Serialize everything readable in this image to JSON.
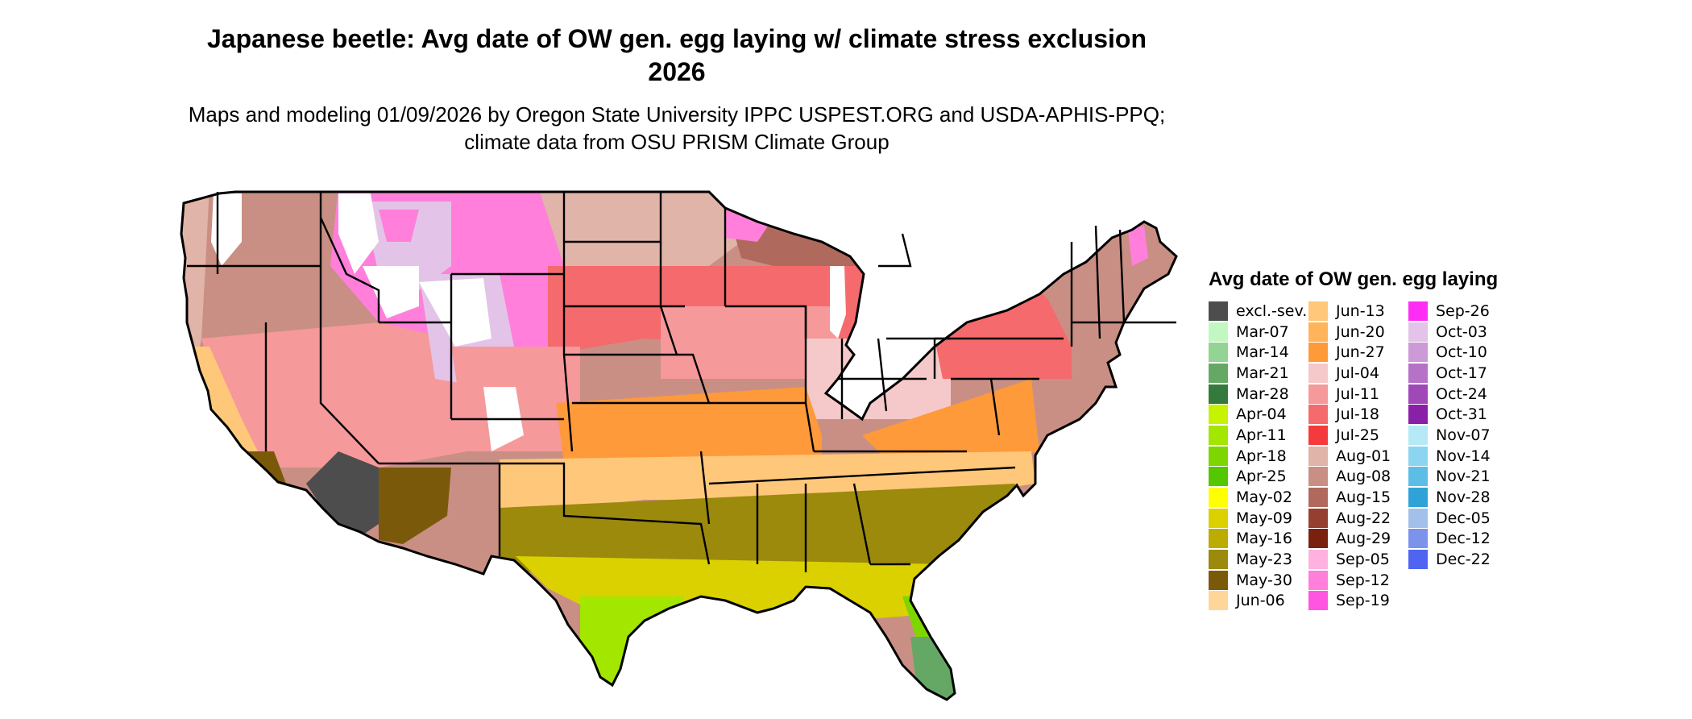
{
  "title": "Japanese beetle: Avg date of OW gen. egg laying w/ climate stress exclusion 2026",
  "subtitle": "Maps and modeling 01/09/2026 by Oregon State University IPPC USPEST.ORG and USDA-APHIS-PPQ; climate data from OSU PRISM Climate Group",
  "legend": {
    "title": "Avg date of OW gen. egg laying",
    "columns": [
      [
        {
          "label": "excl.-sev.",
          "color": "#4d4d4d"
        },
        {
          "label": "Mar-07",
          "color": "#c2f7c2"
        },
        {
          "label": "Mar-14",
          "color": "#93d393"
        },
        {
          "label": "Mar-21",
          "color": "#65a865"
        },
        {
          "label": "Mar-28",
          "color": "#357a3d"
        },
        {
          "label": "Apr-04",
          "color": "#c6f400"
        },
        {
          "label": "Apr-11",
          "color": "#a3e600"
        },
        {
          "label": "Apr-18",
          "color": "#7ed600"
        },
        {
          "label": "Apr-25",
          "color": "#53c700"
        },
        {
          "label": "May-02",
          "color": "#ffff00"
        },
        {
          "label": "May-09",
          "color": "#dbd100"
        },
        {
          "label": "May-16",
          "color": "#bcac00"
        },
        {
          "label": "May-23",
          "color": "#9b8a0c"
        },
        {
          "label": "May-30",
          "color": "#7a5a0a"
        },
        {
          "label": "Jun-06",
          "color": "#ffd699"
        }
      ],
      [
        {
          "label": "Jun-13",
          "color": "#ffc77a"
        },
        {
          "label": "Jun-20",
          "color": "#ffb45c"
        },
        {
          "label": "Jun-27",
          "color": "#ff9a3a"
        },
        {
          "label": "Jul-04",
          "color": "#f5c9c9"
        },
        {
          "label": "Jul-11",
          "color": "#f5999b"
        },
        {
          "label": "Jul-18",
          "color": "#f56a6c"
        },
        {
          "label": "Jul-25",
          "color": "#f53a3d"
        },
        {
          "label": "Aug-01",
          "color": "#e0b4a8"
        },
        {
          "label": "Aug-08",
          "color": "#c98f84"
        },
        {
          "label": "Aug-15",
          "color": "#b06a5d"
        },
        {
          "label": "Aug-22",
          "color": "#953f30"
        },
        {
          "label": "Aug-29",
          "color": "#7a200f"
        },
        {
          "label": "Sep-05",
          "color": "#ffb2e0"
        },
        {
          "label": "Sep-12",
          "color": "#ff7fdb"
        },
        {
          "label": "Sep-19",
          "color": "#ff55e0"
        }
      ],
      [
        {
          "label": "Sep-26",
          "color": "#ff2cf5"
        },
        {
          "label": "Oct-03",
          "color": "#e3c4e8"
        },
        {
          "label": "Oct-10",
          "color": "#cc9ad6"
        },
        {
          "label": "Oct-17",
          "color": "#b672c6"
        },
        {
          "label": "Oct-24",
          "color": "#a048b8"
        },
        {
          "label": "Oct-31",
          "color": "#8a20a8"
        },
        {
          "label": "Nov-07",
          "color": "#b5e9f5"
        },
        {
          "label": "Nov-14",
          "color": "#8cd5f0"
        },
        {
          "label": "Nov-21",
          "color": "#5cbde6"
        },
        {
          "label": "Nov-28",
          "color": "#2fa3d8"
        },
        {
          "label": "Dec-05",
          "color": "#a3c0ea"
        },
        {
          "label": "Dec-12",
          "color": "#7b93ea"
        },
        {
          "label": "Dec-22",
          "color": "#4f64f0"
        }
      ]
    ]
  },
  "map_regions": [
    {
      "name": "severe-exclusion-desert",
      "date": "excl.-sev."
    },
    {
      "name": "high-mountain-west",
      "date": "Sep-12"
    },
    {
      "name": "rocky-mountain-core",
      "date": "Oct-03"
    },
    {
      "name": "pacific-northwest-interior",
      "date": "Aug-08"
    },
    {
      "name": "pacific-coast",
      "date": "Aug-01"
    },
    {
      "name": "great-basin",
      "date": "Jul-11"
    },
    {
      "name": "northern-plains",
      "date": "Aug-01"
    },
    {
      "name": "upper-midwest-north",
      "date": "Aug-08"
    },
    {
      "name": "northern-great-lakes",
      "date": "Aug-15"
    },
    {
      "name": "central-plains",
      "date": "Jul-18"
    },
    {
      "name": "iowa-illinois-band",
      "date": "Jul-11"
    },
    {
      "name": "ohio-valley",
      "date": "Jul-04"
    },
    {
      "name": "new-york-pennsylvania",
      "date": "Jul-18"
    },
    {
      "name": "new-england",
      "date": "Aug-08"
    },
    {
      "name": "mid-atlantic",
      "date": "Jun-27"
    },
    {
      "name": "kansas-missouri",
      "date": "Jun-27"
    },
    {
      "name": "southern-plains-tn",
      "date": "Jun-13"
    },
    {
      "name": "deep-south",
      "date": "May-23"
    },
    {
      "name": "gulf-coast",
      "date": "May-09"
    },
    {
      "name": "south-texas",
      "date": "Apr-11"
    },
    {
      "name": "central-florida",
      "date": "Apr-18"
    },
    {
      "name": "south-florida",
      "date": "Mar-21"
    },
    {
      "name": "california-central-valley",
      "date": "Jun-13"
    },
    {
      "name": "southern-arizona-desert-edge",
      "date": "May-30"
    }
  ]
}
